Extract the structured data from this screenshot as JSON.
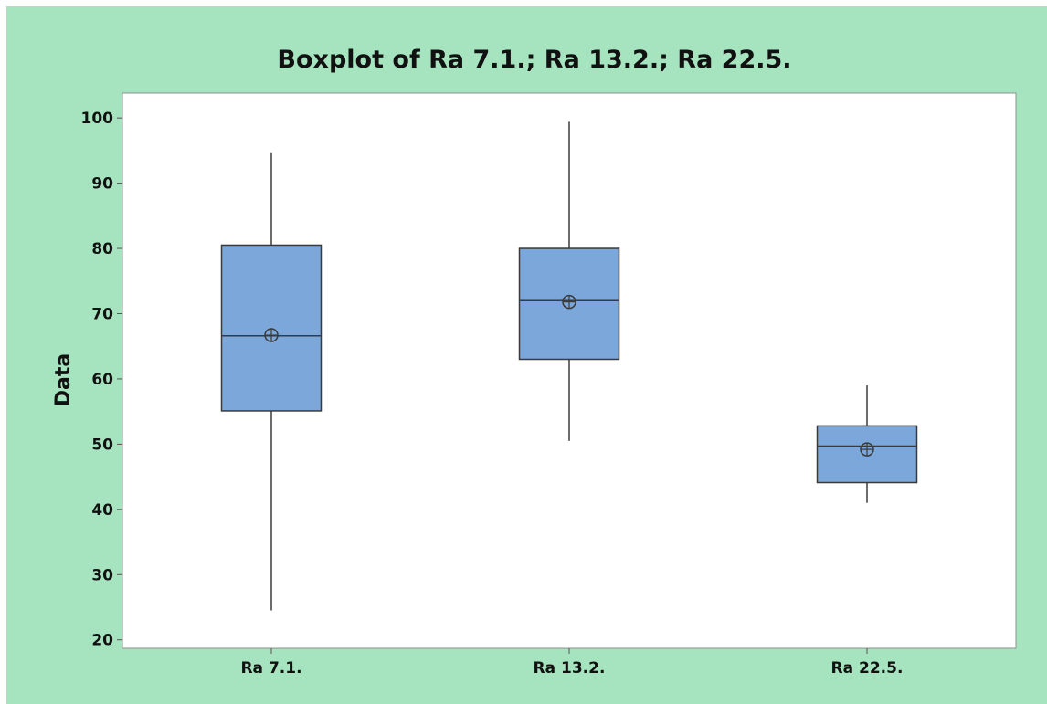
{
  "chart_data": {
    "type": "boxplot",
    "title": "Boxplot of Ra 7.1.; Ra 13.2.; Ra 22.5.",
    "xlabel": "",
    "ylabel": "Data",
    "categories": [
      "Ra 7.1.",
      "Ra 13.2.",
      "Ra 22.5."
    ],
    "ylim": [
      18.7,
      103.8
    ],
    "yticks": [
      20,
      30,
      40,
      50,
      60,
      70,
      80,
      90,
      100
    ],
    "grid": false,
    "legend": "none",
    "boxes": [
      {
        "category": "Ra 7.1.",
        "min": 24.5,
        "q1": 55.1,
        "median": 66.6,
        "q3": 80.5,
        "max": 94.6,
        "mean": 66.7
      },
      {
        "category": "Ra 13.2.",
        "min": 50.5,
        "q1": 63.0,
        "median": 72.0,
        "q3": 80.0,
        "max": 99.4,
        "mean": 71.8
      },
      {
        "category": "Ra 22.5.",
        "min": 41.0,
        "q1": 44.1,
        "median": 49.7,
        "q3": 52.8,
        "max": 59.0,
        "mean": 49.2
      }
    ],
    "colors": {
      "background": "#a6e3bf",
      "plot_area": "#ffffff",
      "box_fill": "#7ba7da",
      "box_stroke": "#3a3a3a",
      "text": "#111111"
    }
  }
}
